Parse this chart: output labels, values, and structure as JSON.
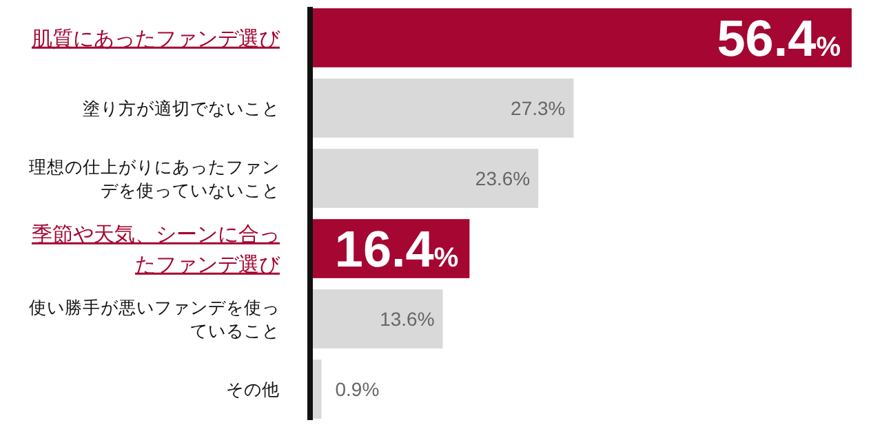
{
  "chart_data": {
    "type": "bar",
    "orientation": "horizontal",
    "categories": [
      "肌質にあったファンデ選び",
      "塗り方が適切でないこと",
      "理想の仕上がりにあったファンデを使っていないこと",
      "季節や天気、シーンに合ったファンデ選び",
      "使い勝手が悪いファンデを使っていること",
      "その他"
    ],
    "values": [
      56.4,
      27.3,
      23.6,
      16.4,
      13.6,
      0.9
    ],
    "value_labels": [
      "56.4%",
      "27.3%",
      "23.6%",
      "16.4%",
      "13.6%",
      "0.9%"
    ],
    "colors": [
      "#a50632",
      "#d9d9d9",
      "#d9d9d9",
      "#a50632",
      "#d9d9d9",
      "#d9d9d9"
    ]
  }
}
